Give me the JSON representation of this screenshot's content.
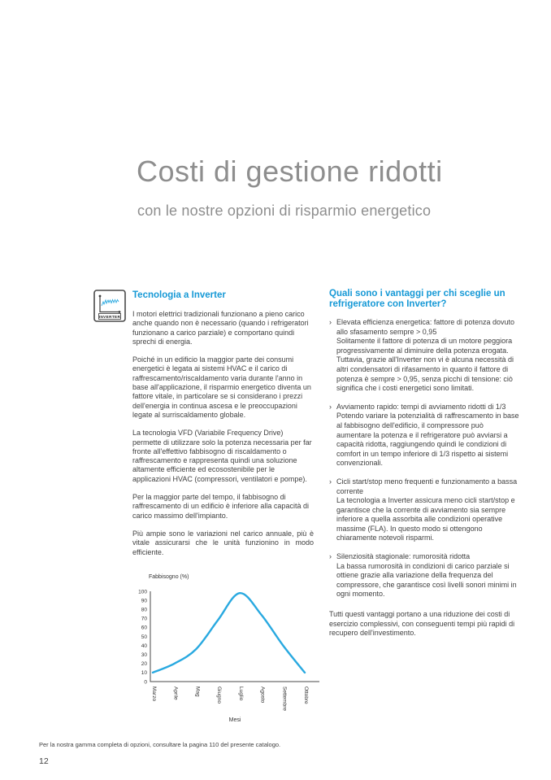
{
  "page": {
    "title": "Costi di gestione ridotti",
    "subtitle": "con le nostre opzioni di risparmio energetico",
    "footer_note": "Per la nostra gamma completa di opzioni, consultare la pagina 110 del presente catalogo.",
    "page_number": "12"
  },
  "left_column": {
    "heading": "Tecnologia a Inverter",
    "icon_label": "INVERTER",
    "paragraphs": [
      "I motori elettrici tradizionali funzionano a pieno carico anche quando non è necessario (quando i refrigeratori funzionano a carico parziale) e comportano quindi sprechi di energia.",
      "Poiché in un edificio la maggior parte dei consumi energetici è legata ai sistemi HVAC e il carico di raffrescamento/riscaldamento varia durante l'anno in base all'applicazione, il risparmio energetico diventa un fattore vitale, in particolare se si considerano i prezzi dell'energia in continua ascesa e le preoccupazioni legate al surriscaldamento globale.",
      "La tecnologia VFD (Variabile Frequency Drive) permette di utilizzare solo la potenza necessaria per far fronte all'effettivo fabbisogno di riscaldamento o raffrescamento e rappresenta quindi una soluzione altamente efficiente ed ecosostenibile per le applicazioni HVAC (compressori, ventilatori e pompe).",
      "Per la maggior parte del tempo, il fabbisogno di raffrescamento di un edificio è inferiore alla capacità di carico massimo dell'impianto.",
      "Più ampie sono le variazioni nel carico annuale, più è vitale assicurarsi che le unità funzionino in modo efficiente."
    ]
  },
  "right_column": {
    "heading": "Quali sono i vantaggi per chi sceglie un refrigeratore con Inverter?",
    "bullets": [
      {
        "title": "Elevata efficienza energetica: fattore di potenza dovuto allo sfasamento sempre > 0,95",
        "body": "Solitamente il fattore di potenza di un motore peggiora progressivamente al diminuire della potenza erogata. Tuttavia, grazie all'Inverter non vi è alcuna necessità di altri condensatori di rifasamento in quanto il fattore di potenza è sempre > 0,95, senza picchi di tensione: ciò significa che i costi energetici sono limitati."
      },
      {
        "title": "Avviamento rapido: tempi di avviamento ridotti di 1/3",
        "body": "Potendo variare la potenzialità di raffrescamento in base al fabbisogno dell'edificio, il compressore può aumentare la potenza e il refrigeratore può avviarsi a capacità ridotta, raggiungendo quindi le condizioni di comfort in un tempo inferiore di 1/3 rispetto ai sistemi convenzionali."
      },
      {
        "title": "Cicli start/stop meno frequenti e funzionamento a bassa corrente",
        "body": "La tecnologia a Inverter assicura meno cicli start/stop e garantisce che la corrente di avviamento sia sempre inferiore a quella assorbita alle condizioni operative massime (FLA). In questo modo si ottengono chiaramente notevoli risparmi."
      },
      {
        "title": "Silenziosità stagionale: rumorosità ridotta",
        "body": "La bassa rumorosità in condizioni di carico parziale si ottiene grazie alla variazione della frequenza del compressore, che garantisce così livelli sonori minimi in ogni momento."
      }
    ],
    "closing": "Tutti questi vantaggi portano a una riduzione dei costi di esercizio complessivi, con conseguenti tempi più rapidi di recupero dell'investimento."
  },
  "chart_data": {
    "type": "line",
    "title": "",
    "ylabel": "Fabbisogno (%)",
    "xlabel": "Mesi",
    "categories": [
      "Marzo",
      "Aprile",
      "Mag",
      "Giugno",
      "Luglio",
      "Agosto",
      "Settembre",
      "Ottobre"
    ],
    "values": [
      10,
      20,
      36,
      68,
      98,
      74,
      40,
      10
    ],
    "ylim": [
      0,
      100
    ],
    "ytick_step": 10,
    "grid": false,
    "legend": "none",
    "line_color": "#29a9e0"
  },
  "icons": {
    "inverter_icon": "waveform-graph",
    "bullet_marker": "›"
  },
  "colors": {
    "accent_blue": "#1699d6",
    "title_gray": "#8e8e8e",
    "body_text": "#414141",
    "chart_line": "#29a9e0"
  }
}
